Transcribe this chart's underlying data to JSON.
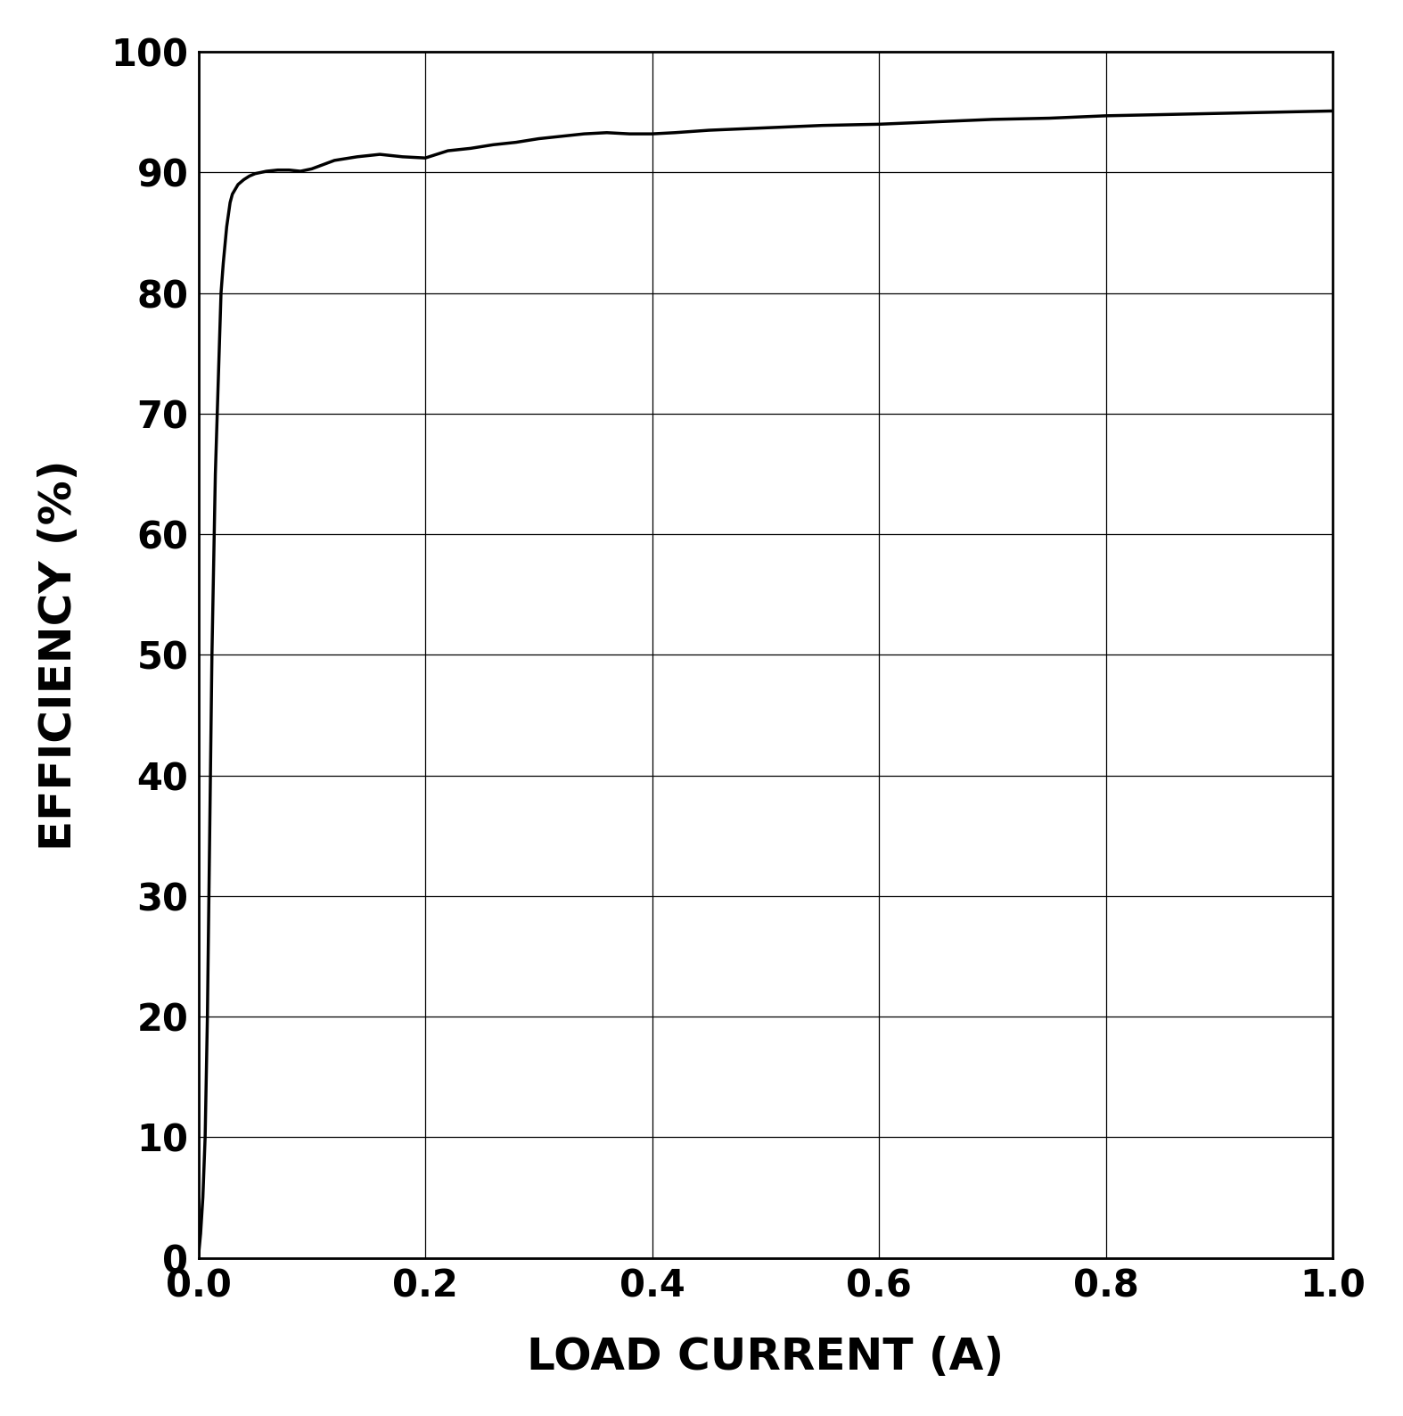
{
  "x": [
    0.0,
    0.002,
    0.004,
    0.006,
    0.008,
    0.01,
    0.012,
    0.015,
    0.018,
    0.02,
    0.022,
    0.025,
    0.028,
    0.03,
    0.035,
    0.04,
    0.045,
    0.05,
    0.06,
    0.07,
    0.08,
    0.09,
    0.1,
    0.12,
    0.14,
    0.16,
    0.18,
    0.2,
    0.22,
    0.24,
    0.26,
    0.28,
    0.3,
    0.32,
    0.34,
    0.36,
    0.38,
    0.4,
    0.42,
    0.45,
    0.5,
    0.55,
    0.6,
    0.65,
    0.7,
    0.75,
    0.8,
    0.85,
    0.9,
    0.95,
    1.0
  ],
  "y": [
    0.0,
    2.0,
    5.0,
    10.0,
    20.0,
    35.0,
    50.0,
    65.0,
    74.0,
    80.0,
    82.5,
    85.5,
    87.5,
    88.2,
    89.0,
    89.4,
    89.7,
    89.9,
    90.1,
    90.2,
    90.2,
    90.1,
    90.3,
    91.0,
    91.3,
    91.5,
    91.3,
    91.2,
    91.8,
    92.0,
    92.3,
    92.5,
    92.8,
    93.0,
    93.2,
    93.3,
    93.2,
    93.2,
    93.3,
    93.5,
    93.7,
    93.9,
    94.0,
    94.2,
    94.4,
    94.5,
    94.7,
    94.8,
    94.9,
    95.0,
    95.1
  ],
  "xlim": [
    0.0,
    1.0
  ],
  "ylim": [
    0,
    100
  ],
  "xticks": [
    0.0,
    0.2,
    0.4,
    0.6,
    0.8,
    1.0
  ],
  "yticks": [
    0,
    10,
    20,
    30,
    40,
    50,
    60,
    70,
    80,
    90,
    100
  ],
  "xlabel": "LOAD CURRENT (A)",
  "ylabel": "EFFICIENCY (%)",
  "line_color": "#000000",
  "line_width": 2.5,
  "background_color": "#ffffff",
  "grid_color": "#000000",
  "grid_linewidth": 0.9,
  "tick_labelsize": 30,
  "axis_labelsize": 36,
  "figsize": [
    15.74,
    15.88
  ],
  "dpi": 100
}
